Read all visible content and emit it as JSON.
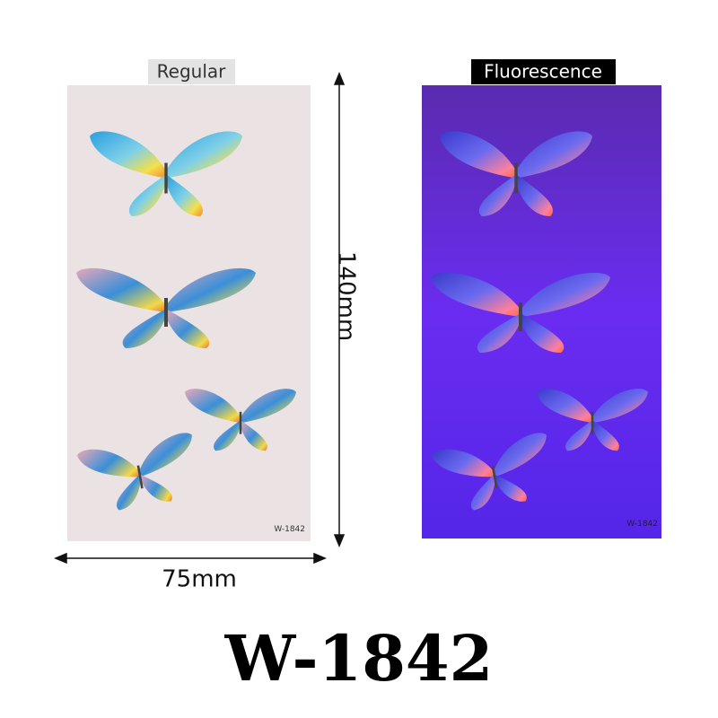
{
  "panels": [
    {
      "label": "Regular",
      "code": "W-1842"
    },
    {
      "label": "Fluorescence",
      "code": "W-1842"
    }
  ],
  "dimensions": {
    "height": "140mm",
    "width": "75mm"
  },
  "title": "W-1842"
}
